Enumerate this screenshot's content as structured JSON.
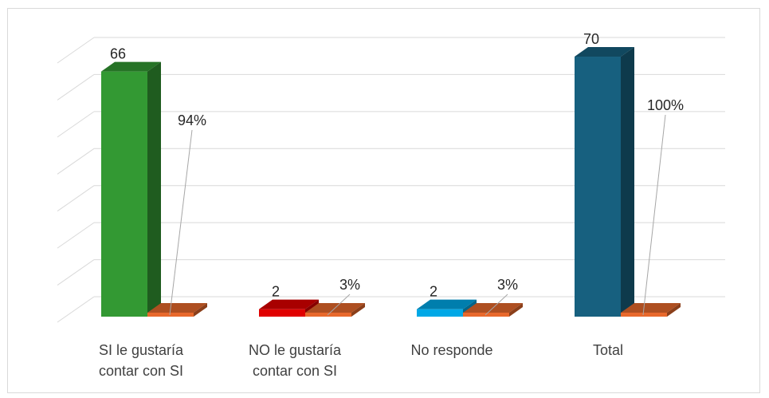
{
  "chart_data": {
    "type": "bar",
    "categories": [
      [
        "SI le gustaría",
        "contar con SI"
      ],
      [
        "NO le gustaría",
        "contar con SI"
      ],
      [
        "No responde"
      ],
      [
        "Total"
      ]
    ],
    "series": [
      {
        "values": [
          66,
          2,
          2,
          70
        ],
        "labels": [
          "66",
          "2",
          "2",
          "70"
        ]
      },
      {
        "values": [
          0.94,
          0.03,
          0.03,
          1.0
        ],
        "labels": [
          "94%",
          "3%",
          "3%",
          "100%"
        ]
      }
    ],
    "bar_colors": [
      "#339933",
      "#e00000",
      "#00a8e6",
      "#17607f"
    ],
    "percent_bar_color": "#e8692c",
    "ylim": [
      0,
      70
    ],
    "grid": true,
    "legend": "none",
    "three_d": true
  }
}
